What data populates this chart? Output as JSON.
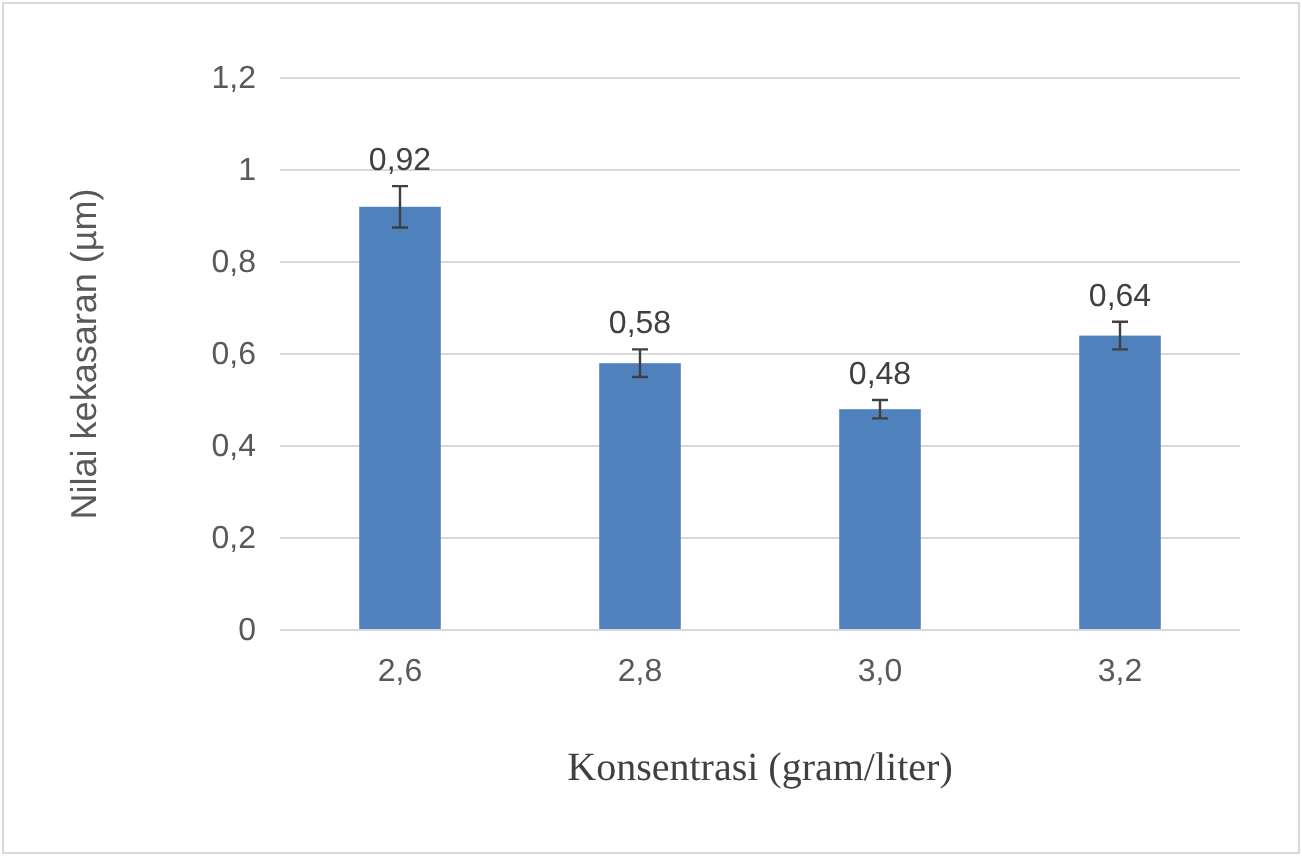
{
  "chart_data": {
    "type": "bar",
    "xlabel": "Konsentrasi (gram/liter)",
    "ylabel": "Nilai kekasaran (µm)",
    "categories": [
      "2,6",
      "2,8",
      "3,0",
      "3,2"
    ],
    "values": [
      0.92,
      0.58,
      0.48,
      0.64
    ],
    "errors": [
      0.045,
      0.03,
      0.02,
      0.03
    ],
    "value_labels": [
      "0,92",
      "0,58",
      "0,48",
      "0,64"
    ],
    "color": "#4f81bd",
    "ylim": [
      0,
      1.2
    ],
    "yticks": [
      0,
      {
        "value": 0.2,
        "label": "0,2"
      },
      {
        "value": 0.4,
        "label": "0,4"
      },
      {
        "value": 0.6,
        "label": "0,6"
      },
      {
        "value": 0.8,
        "label": "0,8"
      },
      1,
      {
        "value": 1.2,
        "label": "1,2"
      }
    ],
    "grid": "y"
  }
}
